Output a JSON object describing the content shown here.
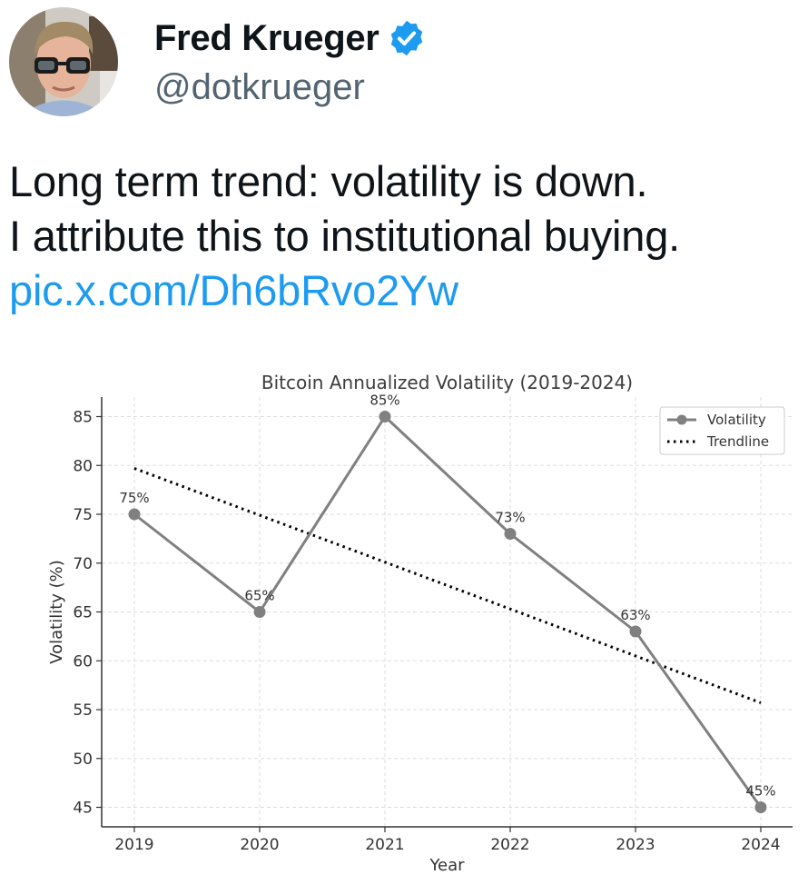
{
  "tweet": {
    "display_name": "Fred Krueger",
    "handle": "@dotkrueger",
    "text_lines": [
      "Long term trend: volatility is down.",
      "I attribute this to institutional buying."
    ],
    "link": "pic.x.com/Dh6bRvo2Yw",
    "verified_color": "#1d9bf0",
    "link_color": "#1d9bf0"
  },
  "chart_data": {
    "type": "line",
    "title": "Bitcoin Annualized Volatility (2019-2024)",
    "xlabel": "Year",
    "ylabel": "Volatility (%)",
    "x": [
      "2019",
      "2020",
      "2021",
      "2022",
      "2023",
      "2024"
    ],
    "y_ticks": [
      "45",
      "50",
      "55",
      "60",
      "65",
      "70",
      "75",
      "80",
      "85"
    ],
    "ylim": [
      43,
      87
    ],
    "grid": true,
    "legend": "top-right",
    "series": [
      {
        "name": "Volatility",
        "values": [
          75,
          65,
          85,
          73,
          63,
          45
        ],
        "data_labels": [
          "75%",
          "65%",
          "85%",
          "73%",
          "63%",
          "45%"
        ],
        "color": "#808080",
        "style": "solid-marker"
      },
      {
        "name": "Trendline",
        "values": [
          79.7,
          74.9,
          70.1,
          65.3,
          60.5,
          55.7
        ],
        "color": "#000000",
        "style": "dotted"
      }
    ]
  }
}
